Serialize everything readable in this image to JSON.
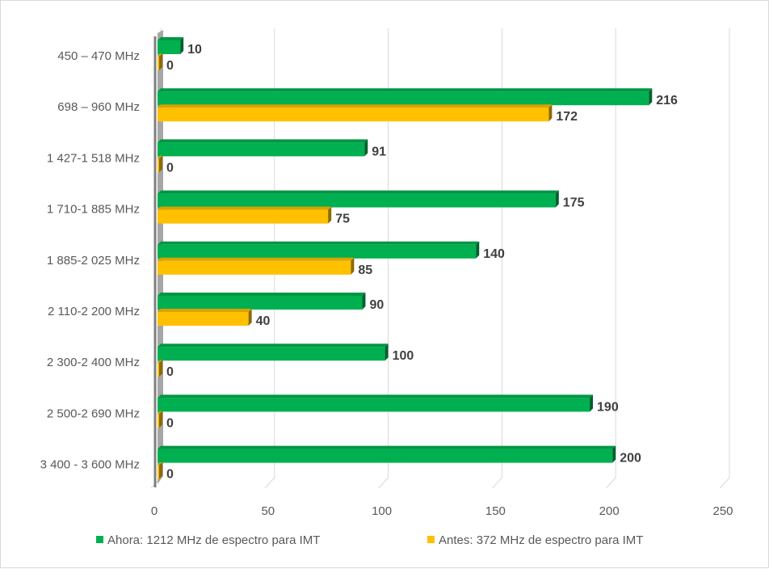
{
  "chart_data": {
    "type": "bar",
    "orientation": "horizontal",
    "style": "3d",
    "categories": [
      "450 – 470 MHz",
      "698 – 960 MHz",
      "1 427-1 518 MHz",
      "1 710-1 885 MHz",
      "1 885-2 025 MHz",
      "2 110-2 200 MHz",
      "2 300-2 400 MHz",
      "2 500-2 690 MHz",
      "3 400 - 3 600 MHz"
    ],
    "series": [
      {
        "name": "Ahora: 1212 MHz de espectro para IMT",
        "color": "#00b050",
        "values": [
          10,
          216,
          91,
          175,
          140,
          90,
          100,
          190,
          200
        ]
      },
      {
        "name": "Antes: 372 MHz de espectro para IMT",
        "color": "#ffc000",
        "values": [
          0,
          172,
          0,
          75,
          85,
          40,
          0,
          0,
          0
        ]
      }
    ],
    "xlim": [
      0,
      250
    ],
    "x_ticks": [
      "0",
      "50",
      "100",
      "150",
      "200",
      "250"
    ],
    "grid": true,
    "legend_position": "bottom",
    "data_labels": true
  }
}
